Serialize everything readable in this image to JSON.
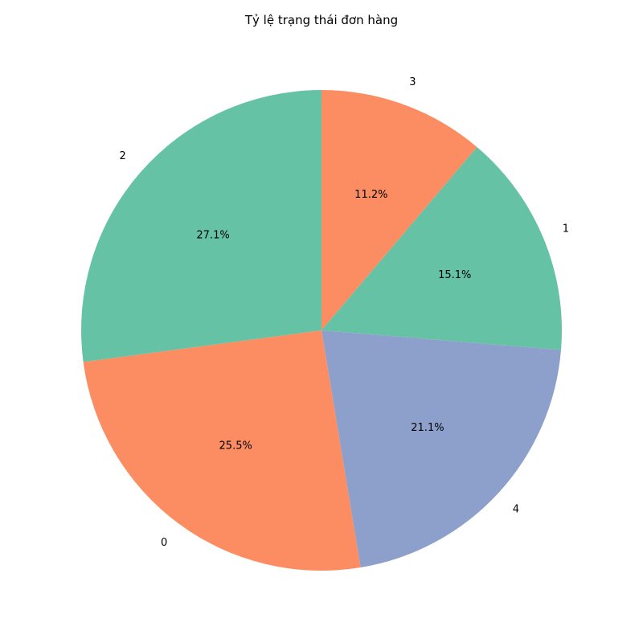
{
  "chart_data": {
    "type": "pie",
    "title": "Tỷ lệ trạng thái đơn hàng",
    "start_angle_deg": 90,
    "direction": "clockwise",
    "slices": [
      {
        "label": "3",
        "value": 11.2,
        "pct_label": "11.2%",
        "color": "#fc8d62"
      },
      {
        "label": "1",
        "value": 15.1,
        "pct_label": "15.1%",
        "color": "#66c2a5"
      },
      {
        "label": "4",
        "value": 21.1,
        "pct_label": "21.1%",
        "color": "#8da0cb"
      },
      {
        "label": "0",
        "value": 25.5,
        "pct_label": "25.5%",
        "color": "#fc8d62"
      },
      {
        "label": "2",
        "value": 27.1,
        "pct_label": "27.1%",
        "color": "#66c2a5"
      }
    ]
  }
}
